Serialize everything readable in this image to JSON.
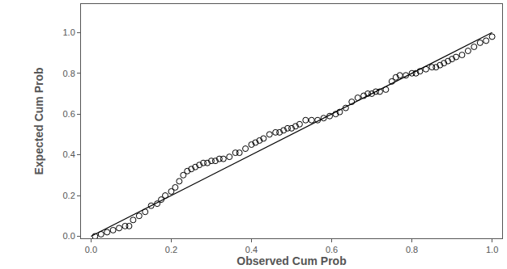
{
  "chart_data": {
    "type": "scatter",
    "x_label": "Observed Cum Prob",
    "y_label": "Expected Cum Prob",
    "xlim": [
      -0.025,
      1.025
    ],
    "ylim": [
      -0.01,
      1.14
    ],
    "xticks": [
      {
        "value": 0,
        "label": "0.0"
      },
      0.2,
      0.4,
      0.6,
      0.8,
      {
        "value": 1,
        "label": "1.0"
      }
    ],
    "yticks": [
      {
        "value": 0,
        "label": "0.0"
      },
      0.2,
      0.4,
      0.6,
      0.8,
      {
        "value": 1,
        "label": "1.0"
      }
    ],
    "grid": false,
    "series": [
      {
        "type": "line",
        "color": "#000000",
        "line_style": "solid",
        "x": [
          0,
          1
        ],
        "values": [
          0,
          1
        ]
      },
      {
        "type": "scatter",
        "color": "#000000",
        "marker": "circle-open",
        "x": [
          0.01,
          0.025,
          0.04,
          0.055,
          0.07,
          0.085,
          0.095,
          0.105,
          0.12,
          0.135,
          0.15,
          0.165,
          0.175,
          0.185,
          0.2,
          0.21,
          0.22,
          0.23,
          0.24,
          0.25,
          0.26,
          0.27,
          0.28,
          0.29,
          0.3,
          0.31,
          0.32,
          0.33,
          0.345,
          0.36,
          0.37,
          0.385,
          0.4,
          0.41,
          0.42,
          0.43,
          0.445,
          0.46,
          0.47,
          0.48,
          0.49,
          0.5,
          0.51,
          0.52,
          0.535,
          0.55,
          0.565,
          0.58,
          0.595,
          0.61,
          0.62,
          0.635,
          0.65,
          0.665,
          0.68,
          0.69,
          0.7,
          0.71,
          0.72,
          0.735,
          0.75,
          0.76,
          0.77,
          0.785,
          0.8,
          0.81,
          0.82,
          0.835,
          0.85,
          0.86,
          0.87,
          0.88,
          0.89,
          0.9,
          0.91,
          0.925,
          0.94,
          0.955,
          0.97,
          0.985,
          1.0
        ],
        "values": [
          0.0,
          0.01,
          0.02,
          0.03,
          0.04,
          0.05,
          0.05,
          0.08,
          0.1,
          0.12,
          0.15,
          0.16,
          0.18,
          0.2,
          0.22,
          0.24,
          0.27,
          0.3,
          0.32,
          0.33,
          0.34,
          0.35,
          0.36,
          0.36,
          0.37,
          0.37,
          0.38,
          0.38,
          0.39,
          0.41,
          0.41,
          0.43,
          0.45,
          0.46,
          0.47,
          0.48,
          0.5,
          0.51,
          0.51,
          0.52,
          0.53,
          0.53,
          0.54,
          0.55,
          0.57,
          0.57,
          0.57,
          0.58,
          0.59,
          0.6,
          0.61,
          0.63,
          0.66,
          0.68,
          0.69,
          0.7,
          0.7,
          0.71,
          0.71,
          0.72,
          0.76,
          0.78,
          0.79,
          0.79,
          0.8,
          0.8,
          0.81,
          0.82,
          0.83,
          0.83,
          0.84,
          0.85,
          0.86,
          0.87,
          0.88,
          0.89,
          0.91,
          0.93,
          0.95,
          0.96,
          0.98
        ]
      }
    ]
  }
}
